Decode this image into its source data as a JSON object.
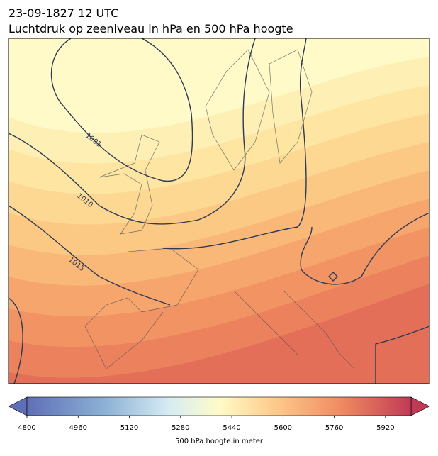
{
  "title": "23-09-1827 12 UTC",
  "subtitle": "Luchtdruk op zeeniveau in hPa en 500 hPa hoogte",
  "contour_labels": [
    1005,
    1010,
    1015
  ],
  "colorbar": {
    "lim": [
      4800,
      6000
    ],
    "ticks": [
      4800,
      4960,
      5120,
      5280,
      5440,
      5600,
      5760,
      5920
    ],
    "label": "500 hPa hoogte in meter"
  }
}
